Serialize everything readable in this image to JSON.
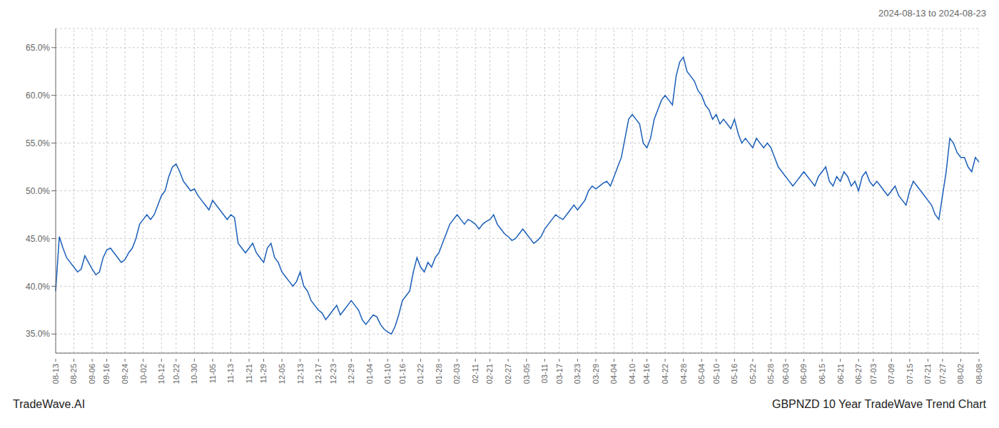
{
  "chart_data": {
    "type": "line",
    "title": "GBPNZD 10 Year TradeWave Trend Chart",
    "subtitle": "2024-08-13 to 2024-08-23",
    "annotations": [
      "TradeWave.AI"
    ],
    "color": "#1a5eb8",
    "grid": true,
    "ylim": [
      33.0,
      67.0
    ],
    "yticks": [
      {
        "value": 35.0,
        "label": "35.0%"
      },
      {
        "value": 40.0,
        "label": "40.0%"
      },
      {
        "value": 45.0,
        "label": "45.0%"
      },
      {
        "value": 50.0,
        "label": "50.0%"
      },
      {
        "value": 55.0,
        "label": "55.0%"
      },
      {
        "value": 60.0,
        "label": "60.0%"
      },
      {
        "value": 65.0,
        "label": "65.0%"
      }
    ],
    "categories": [
      "08-13",
      null,
      null,
      null,
      null,
      "08-25",
      null,
      null,
      null,
      null,
      "09-06",
      null,
      null,
      null,
      "09-16",
      null,
      null,
      null,
      null,
      "09-24",
      null,
      null,
      null,
      null,
      "10-02",
      null,
      null,
      null,
      null,
      "10-12",
      null,
      null,
      null,
      "10-22",
      null,
      null,
      null,
      null,
      "10-30",
      null,
      null,
      null,
      null,
      "11-05",
      null,
      null,
      null,
      null,
      "11-13",
      null,
      null,
      null,
      null,
      "11-21",
      null,
      null,
      null,
      "11-29",
      null,
      null,
      null,
      null,
      "12-05",
      null,
      null,
      null,
      null,
      "12-13",
      null,
      null,
      null,
      null,
      "12-17",
      null,
      null,
      null,
      "12-23",
      null,
      null,
      null,
      null,
      "12-29",
      null,
      null,
      null,
      null,
      "01-04",
      null,
      null,
      null,
      null,
      "01-10",
      null,
      null,
      null,
      "01-16",
      null,
      null,
      null,
      null,
      "01-22",
      null,
      null,
      null,
      null,
      "01-28",
      null,
      null,
      null,
      null,
      "02-03",
      null,
      null,
      null,
      null,
      "02-11",
      null,
      null,
      null,
      "02-21",
      null,
      null,
      null,
      null,
      "02-27",
      null,
      null,
      null,
      null,
      "03-05",
      null,
      null,
      null,
      null,
      "03-11",
      null,
      null,
      null,
      "03-17",
      null,
      null,
      null,
      null,
      "03-23",
      null,
      null,
      null,
      null,
      "03-29",
      null,
      null,
      null,
      null,
      "04-04",
      null,
      null,
      null,
      null,
      "04-10",
      null,
      null,
      null,
      "04-16",
      null,
      null,
      null,
      null,
      "04-22",
      null,
      null,
      null,
      null,
      "04-28",
      null,
      null,
      null,
      null,
      "05-04",
      null,
      null,
      null,
      "05-10",
      null,
      null,
      null,
      null,
      "05-16",
      null,
      null,
      null,
      null,
      "05-22",
      null,
      null,
      null,
      null,
      "05-28",
      null,
      null,
      null,
      "06-03",
      null,
      null,
      null,
      null,
      "06-09",
      null,
      null,
      null,
      null,
      "06-15",
      null,
      null,
      null,
      null,
      "06-21",
      null,
      null,
      null,
      null,
      "06-27",
      null,
      null,
      null,
      "07-03",
      null,
      null,
      null,
      null,
      "07-09",
      null,
      null,
      null,
      null,
      "07-15",
      null,
      null,
      null,
      null,
      "07-21",
      null,
      null,
      null,
      "07-27",
      null,
      null,
      null,
      null,
      "08-02",
      null,
      null,
      null,
      null,
      "08-08"
    ],
    "values": [
      39.5,
      45.2,
      44.0,
      43.0,
      42.5,
      42.0,
      41.5,
      41.8,
      43.2,
      42.5,
      41.8,
      41.2,
      41.5,
      43.0,
      43.8,
      44.0,
      43.5,
      43.0,
      42.5,
      42.8,
      43.5,
      44.0,
      45.0,
      46.5,
      47.0,
      47.5,
      47.0,
      47.5,
      48.5,
      49.5,
      50.0,
      51.5,
      52.5,
      52.8,
      52.0,
      51.0,
      50.5,
      50.0,
      50.2,
      49.5,
      49.0,
      48.5,
      48.0,
      49.0,
      48.5,
      48.0,
      47.5,
      47.0,
      47.5,
      47.2,
      44.5,
      44.0,
      43.5,
      44.0,
      44.5,
      43.5,
      43.0,
      42.5,
      44.0,
      44.5,
      43.0,
      42.5,
      41.5,
      41.0,
      40.5,
      40.0,
      40.5,
      41.5,
      40.0,
      39.5,
      38.5,
      38.0,
      37.5,
      37.2,
      36.5,
      37.0,
      37.5,
      38.0,
      37.0,
      37.5,
      38.0,
      38.5,
      38.0,
      37.5,
      36.5,
      36.0,
      36.5,
      37.0,
      36.8,
      36.0,
      35.5,
      35.2,
      35.0,
      35.8,
      37.0,
      38.5,
      39.0,
      39.5,
      41.5,
      43.0,
      42.0,
      41.5,
      42.5,
      42.0,
      43.0,
      43.5,
      44.5,
      45.5,
      46.5,
      47.0,
      47.5,
      47.0,
      46.5,
      47.0,
      46.8,
      46.5,
      46.0,
      46.5,
      46.8,
      47.0,
      47.5,
      46.5,
      46.0,
      45.5,
      45.2,
      44.8,
      45.0,
      45.5,
      46.0,
      45.5,
      45.0,
      44.5,
      44.8,
      45.2,
      46.0,
      46.5,
      47.0,
      47.5,
      47.2,
      47.0,
      47.5,
      48.0,
      48.5,
      48.0,
      48.5,
      49.0,
      50.0,
      50.5,
      50.2,
      50.5,
      50.8,
      51.0,
      50.5,
      51.5,
      52.5,
      53.5,
      55.5,
      57.5,
      58.0,
      57.5,
      57.0,
      55.0,
      54.5,
      55.5,
      57.5,
      58.5,
      59.5,
      60.0,
      59.5,
      59.0,
      62.0,
      63.5,
      64.0,
      62.5,
      62.0,
      61.5,
      60.5,
      60.0,
      59.0,
      58.5,
      57.5,
      58.0,
      57.0,
      57.5,
      57.0,
      56.5,
      57.5,
      56.0,
      55.0,
      55.5,
      55.0,
      54.5,
      55.5,
      55.0,
      54.5,
      55.0,
      54.5,
      53.5,
      52.5,
      52.0,
      51.5,
      51.0,
      50.5,
      51.0,
      51.5,
      52.0,
      51.5,
      51.0,
      50.5,
      51.5,
      52.0,
      52.5,
      51.0,
      50.5,
      51.5,
      51.0,
      52.0,
      51.5,
      50.5,
      51.0,
      50.0,
      51.5,
      52.0,
      51.0,
      50.5,
      51.0,
      50.5,
      50.0,
      49.5,
      50.0,
      50.5,
      49.5,
      49.0,
      48.5,
      50.0,
      51.0,
      50.5,
      50.0,
      49.5,
      49.0,
      48.5,
      47.5,
      47.0,
      49.5,
      52.0,
      55.5,
      55.0,
      54.0,
      53.5,
      53.5,
      52.5,
      52.0,
      53.5,
      53.0
    ]
  }
}
